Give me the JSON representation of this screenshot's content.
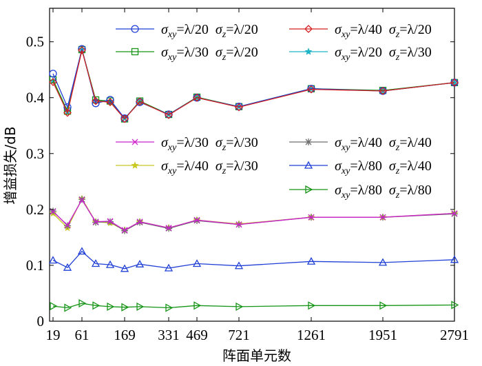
{
  "chart_data": {
    "type": "line",
    "xlabel": "阵面单元数",
    "ylabel": "增益损失/dB",
    "x_tick_labels": [
      "19",
      "61",
      "169",
      "331",
      "469",
      "721",
      "1261",
      "1951",
      "2791"
    ],
    "y_tick_labels": [
      "0",
      "0.1",
      "0.2",
      "0.3",
      "0.4",
      "0.5"
    ],
    "y_tick_values": [
      0,
      0.1,
      0.2,
      0.3,
      0.4,
      0.5
    ],
    "ylim": [
      0,
      0.56
    ],
    "grid": false,
    "x": [
      19,
      37,
      61,
      91,
      127,
      169,
      217,
      331,
      469,
      721,
      1261,
      1951,
      2791
    ],
    "series": [
      {
        "name": "σxy=λ/20  σz=λ/20",
        "color": "#1f3fd6",
        "marker": "circle",
        "values": [
          0.443,
          0.383,
          0.487,
          0.39,
          0.396,
          0.363,
          0.392,
          0.37,
          0.4,
          0.384,
          0.416,
          0.412,
          0.427
        ]
      },
      {
        "name": "σxy=λ/40  σz=λ/20",
        "color": "#d42020",
        "marker": "diamond",
        "values": [
          0.428,
          0.373,
          0.485,
          0.394,
          0.392,
          0.362,
          0.393,
          0.369,
          0.4,
          0.383,
          0.415,
          0.412,
          0.427
        ]
      },
      {
        "name": "σxy=λ/30  σz=λ/20",
        "color": "#159415",
        "marker": "square",
        "values": [
          0.432,
          0.376,
          0.486,
          0.396,
          0.394,
          0.362,
          0.394,
          0.37,
          0.401,
          0.384,
          0.416,
          0.413,
          0.427
        ]
      },
      {
        "name": "σxy=λ/20  σz=λ/30",
        "color": "#20b4c8",
        "marker": "star",
        "values": [
          0.43,
          0.375,
          0.486,
          0.395,
          0.393,
          0.363,
          0.393,
          0.37,
          0.4,
          0.384,
          0.416,
          0.412,
          0.427
        ]
      },
      {
        "name": "σxy=λ/30  σz=λ/30",
        "color": "#cc22cc",
        "marker": "x",
        "values": [
          0.196,
          0.172,
          0.217,
          0.178,
          0.179,
          0.163,
          0.178,
          0.167,
          0.181,
          0.173,
          0.186,
          0.186,
          0.193
        ]
      },
      {
        "name": "σxy=λ/40  σz=λ/40",
        "color": "#6e6e6e",
        "marker": "asterisk",
        "values": [
          0.197,
          0.171,
          0.218,
          0.177,
          0.178,
          0.162,
          0.177,
          0.166,
          0.18,
          0.173,
          0.186,
          0.186,
          0.192
        ]
      },
      {
        "name": "σxy=λ/40  σz=λ/30",
        "color": "#c8c820",
        "marker": "star",
        "values": [
          0.193,
          0.167,
          0.219,
          0.178,
          0.176,
          0.163,
          0.178,
          0.167,
          0.181,
          0.174,
          0.186,
          0.186,
          0.193
        ]
      },
      {
        "name": "σxy=λ/80  σz=λ/40",
        "color": "#1f3fd6",
        "marker": "triangle-up",
        "values": [
          0.109,
          0.096,
          0.125,
          0.103,
          0.101,
          0.094,
          0.102,
          0.095,
          0.103,
          0.099,
          0.107,
          0.105,
          0.11
        ]
      },
      {
        "name": "σxy=λ/80  σz=λ/80",
        "color": "#159415",
        "marker": "triangle-right",
        "values": [
          0.027,
          0.024,
          0.032,
          0.028,
          0.026,
          0.025,
          0.026,
          0.024,
          0.028,
          0.026,
          0.028,
          0.028,
          0.029
        ]
      }
    ],
    "legend": [
      {
        "series": 0,
        "sym": "σ",
        "sub1": "xy",
        "eq1": "=λ/20",
        "sub2": "z",
        "eq2": "=λ/20"
      },
      {
        "series": 1,
        "sym": "σ",
        "sub1": "xy",
        "eq1": "=λ/40",
        "sub2": "z",
        "eq2": "=λ/20"
      },
      {
        "series": 2,
        "sym": "σ",
        "sub1": "xy",
        "eq1": "=λ/30",
        "sub2": "z",
        "eq2": "=λ/20"
      },
      {
        "series": 3,
        "sym": "σ",
        "sub1": "xy",
        "eq1": "=λ/20",
        "sub2": "z",
        "eq2": "=λ/30"
      },
      {
        "series": 4,
        "sym": "σ",
        "sub1": "xy",
        "eq1": "=λ/30",
        "sub2": "z",
        "eq2": "=λ/30"
      },
      {
        "series": 5,
        "sym": "σ",
        "sub1": "xy",
        "eq1": "=λ/40",
        "sub2": "z",
        "eq2": "=λ/40"
      },
      {
        "series": 6,
        "sym": "σ",
        "sub1": "xy",
        "eq1": "=λ/40",
        "sub2": "z",
        "eq2": "=λ/30"
      },
      {
        "series": 7,
        "sym": "σ",
        "sub1": "xy",
        "eq1": "=λ/80",
        "sub2": "z",
        "eq2": "=λ/40"
      },
      {
        "series": 8,
        "sym": "σ",
        "sub1": "xy",
        "eq1": "=λ/80",
        "sub2": "z",
        "eq2": "=λ/80"
      }
    ]
  }
}
